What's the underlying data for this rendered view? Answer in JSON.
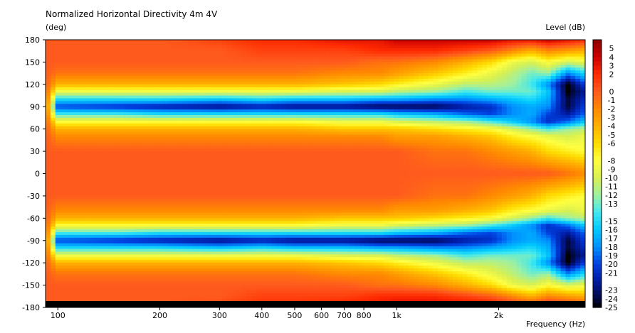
{
  "chart_data": {
    "type": "heatmap",
    "title": "Normalized Horizontal Directivity 4m 4V",
    "ylabel": "(deg)",
    "xlabel": "Frequency  (Hz)",
    "colorbar_label": "Level  (dB)",
    "xscale": "log",
    "xlim": [
      92,
      3600
    ],
    "ylim": [
      -180,
      180
    ],
    "x_ticks": [
      {
        "value": 100,
        "label": "100"
      },
      {
        "value": 200,
        "label": "200"
      },
      {
        "value": 300,
        "label": "300"
      },
      {
        "value": 400,
        "label": "400"
      },
      {
        "value": 500,
        "label": "500"
      },
      {
        "value": 600,
        "label": "600"
      },
      {
        "value": 700,
        "label": "700"
      },
      {
        "value": 800,
        "label": "800"
      },
      {
        "value": 1000,
        "label": "1k"
      },
      {
        "value": 2000,
        "label": "2k"
      }
    ],
    "y_ticks": [
      180,
      150,
      120,
      90,
      60,
      30,
      0,
      -30,
      -60,
      -90,
      -120,
      -150,
      -180
    ],
    "colorbar_ticks": [
      5,
      4,
      3,
      2,
      0,
      -1,
      -2,
      -3,
      -4,
      -5,
      -6,
      -8,
      -9,
      -10,
      -11,
      -12,
      -13,
      -15,
      -16,
      -17,
      -18,
      -19,
      -20,
      -21,
      -23,
      -24,
      -25
    ],
    "color_scale": {
      "min_db": -25,
      "max_db": 6,
      "stops": [
        {
          "db": 6,
          "color": "#8b0000"
        },
        {
          "db": 4,
          "color": "#cc0000"
        },
        {
          "db": 2,
          "color": "#ff2a00"
        },
        {
          "db": 0,
          "color": "#ff5a1e"
        },
        {
          "db": -2,
          "color": "#ff8a00"
        },
        {
          "db": -4,
          "color": "#ffb000"
        },
        {
          "db": -6,
          "color": "#ffdc00"
        },
        {
          "db": -8,
          "color": "#ffff40"
        },
        {
          "db": -10,
          "color": "#d8f050"
        },
        {
          "db": -12,
          "color": "#a0f0a0"
        },
        {
          "db": -14,
          "color": "#40e8f0"
        },
        {
          "db": -16,
          "color": "#00c8ff"
        },
        {
          "db": -18,
          "color": "#0090ff"
        },
        {
          "db": -20,
          "color": "#0040e0"
        },
        {
          "db": -22,
          "color": "#001aa0"
        },
        {
          "db": -24,
          "color": "#000840"
        },
        {
          "db": -25,
          "color": "#000000"
        }
      ]
    },
    "frequency_samples_hz": [
      92,
      100,
      150,
      200,
      300,
      400,
      500,
      700,
      900,
      1000,
      1300,
      1600,
      1900,
      2200,
      2500,
      2800,
      3200,
      3600
    ],
    "angle_samples_deg": [
      0,
      30,
      50,
      60,
      70,
      80,
      90,
      100,
      110,
      120,
      135,
      150,
      165,
      180
    ],
    "level_db_rows": [
      [
        0,
        0,
        0,
        0,
        0,
        0,
        0,
        0,
        0,
        0,
        0,
        0,
        0,
        0
      ],
      [
        0,
        0,
        -2,
        -4,
        -8,
        -14,
        -20,
        -15,
        -9,
        -4,
        -1,
        0,
        0,
        0
      ],
      [
        0,
        0,
        -2,
        -4,
        -8,
        -14,
        -21,
        -15,
        -9,
        -4,
        -1,
        0,
        0,
        0
      ],
      [
        0,
        0,
        -2,
        -4,
        -8,
        -15,
        -22,
        -15,
        -9,
        -4,
        -1,
        0,
        0,
        0
      ],
      [
        0,
        0,
        -2,
        -4,
        -8,
        -15,
        -23,
        -16,
        -9,
        -4,
        -1,
        0,
        0,
        1
      ],
      [
        0,
        0,
        -2,
        -4,
        -8,
        -15,
        -22,
        -15,
        -9,
        -4,
        -1,
        0,
        1,
        2
      ],
      [
        0,
        0,
        -2,
        -4,
        -8,
        -15,
        -23,
        -16,
        -9,
        -4,
        -1,
        0,
        1,
        2
      ],
      [
        0,
        0,
        -2,
        -5,
        -9,
        -15,
        -23,
        -16,
        -10,
        -5,
        -2,
        0,
        1,
        3
      ],
      [
        0,
        0,
        -2,
        -5,
        -9,
        -15,
        -24,
        -17,
        -10,
        -6,
        -2,
        -1,
        2,
        3
      ],
      [
        0,
        0,
        -3,
        -5,
        -10,
        -16,
        -24,
        -17,
        -11,
        -7,
        -3,
        -1,
        2,
        4
      ],
      [
        0,
        -1,
        -3,
        -6,
        -11,
        -17,
        -24,
        -18,
        -12,
        -9,
        -5,
        -2,
        2,
        4
      ],
      [
        0,
        -1,
        -4,
        -7,
        -12,
        -19,
        -22,
        -18,
        -14,
        -11,
        -7,
        -4,
        1,
        4
      ],
      [
        0,
        -2,
        -5,
        -8,
        -14,
        -20,
        -21,
        -17,
        -13,
        -11,
        -9,
        -6,
        0,
        4
      ],
      [
        0,
        -3,
        -7,
        -10,
        -16,
        -18,
        -18,
        -16,
        -13,
        -12,
        -11,
        -9,
        -2,
        3
      ],
      [
        0,
        -4,
        -8,
        -12,
        -18,
        -17,
        -17,
        -15,
        -13,
        -14,
        -13,
        -10,
        -4,
        3
      ],
      [
        0,
        -6,
        -9,
        -14,
        -21,
        -20,
        -18,
        -17,
        -16,
        -18,
        -12,
        -8,
        -2,
        4
      ],
      [
        -1,
        -7,
        -10,
        -12,
        -19,
        -22,
        -24,
        -24,
        -25,
        -25,
        -18,
        -10,
        -3,
        3
      ],
      [
        -2,
        -8,
        -9,
        -11,
        -16,
        -19,
        -20,
        -21,
        -22,
        -20,
        -15,
        -9,
        -4,
        2
      ]
    ]
  }
}
